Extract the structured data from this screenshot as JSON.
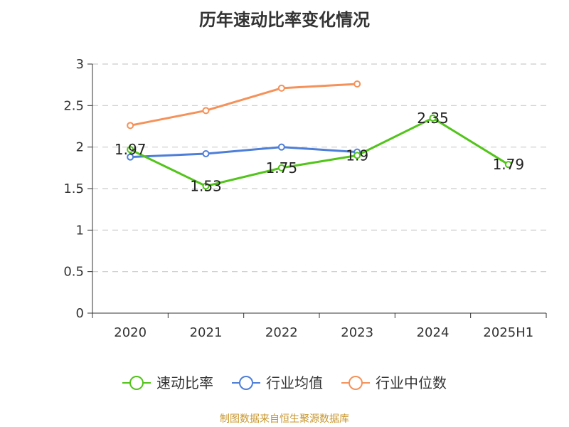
{
  "title": "历年速动比率变化情况",
  "source": "制图数据来自恒生聚源数据库",
  "chart_data": {
    "type": "line",
    "title": "历年速动比率变化情况",
    "categories": [
      "2020",
      "2021",
      "2022",
      "2023",
      "2024",
      "2025H1"
    ],
    "ylim": [
      0,
      3
    ],
    "yticks": [
      "0",
      "0.5",
      "1",
      "1.5",
      "2",
      "2.5",
      "3"
    ],
    "grid": true,
    "legend_position": "bottom",
    "series": [
      {
        "name": "速动比率",
        "color": "#52c41a",
        "values": [
          1.97,
          1.53,
          1.75,
          1.9,
          2.35,
          1.79
        ],
        "labels": [
          "1.97",
          "1.53",
          "1.75",
          "1.9",
          "2.35",
          "1.79"
        ]
      },
      {
        "name": "行业均值",
        "color": "#4e7fd8",
        "values": [
          1.88,
          1.92,
          2.0,
          1.94,
          null,
          null
        ]
      },
      {
        "name": "行业中位数",
        "color": "#f5925a",
        "values": [
          2.26,
          2.44,
          2.71,
          2.76,
          null,
          null
        ]
      }
    ]
  }
}
